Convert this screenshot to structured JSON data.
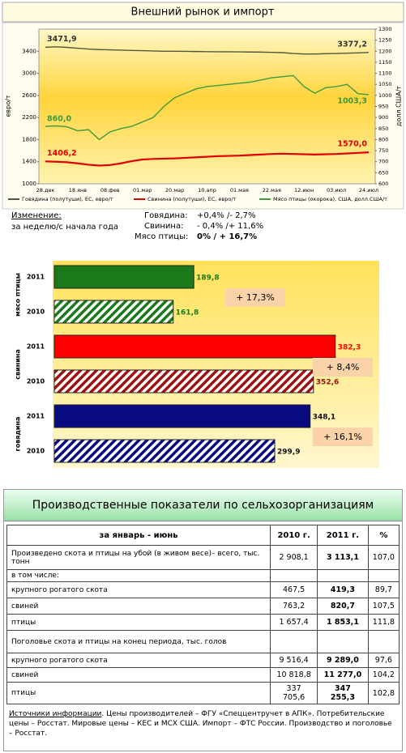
{
  "header": {
    "title": "Внешний рынок и импорт"
  },
  "chart_data": [
    {
      "type": "line",
      "ylabel": "евро/т",
      "y2label": "долл.США/т",
      "categories": [
        "28.дек",
        null,
        null,
        "18.янв",
        null,
        null,
        "08.фев",
        null,
        null,
        "01.мар",
        null,
        null,
        "20.мар",
        null,
        null,
        "10.апр",
        null,
        null,
        "01.мая",
        null,
        null,
        "22.мая",
        null,
        null,
        "12.июн",
        null,
        null,
        "03.июл",
        null,
        null,
        "24.июл"
      ],
      "ylim": [
        1000,
        3800
      ],
      "yticks": [
        1000,
        1400,
        1800,
        2200,
        2600,
        3000,
        3400
      ],
      "y2lim": [
        600,
        1300
      ],
      "y2ticks": [
        600,
        650,
        700,
        750,
        800,
        850,
        900,
        950,
        1000,
        1050,
        1100,
        1150,
        1200,
        1250,
        1300
      ],
      "series": [
        {
          "name": "Говядина (полутуши), ЕС, евро/т",
          "color": "#4f5a3a",
          "values": [
            3471.9,
            3480,
            3470,
            3455,
            3440,
            3430,
            3425,
            3420,
            3415,
            3410,
            3405,
            3400,
            3400,
            3398,
            3395,
            3392,
            3390,
            3390,
            3388,
            3386,
            3384,
            3380,
            3375,
            3360,
            3350,
            3350,
            3355,
            3360,
            3365,
            3370,
            3377.2
          ],
          "value_labels": [
            "3471,9",
            null,
            null,
            null,
            null,
            null,
            null,
            null,
            null,
            null,
            null,
            null,
            null,
            null,
            null,
            null,
            null,
            null,
            null,
            null,
            null,
            null,
            null,
            null,
            null,
            null,
            null,
            null,
            null,
            null,
            "3377,2"
          ]
        },
        {
          "name": "Свинина (полутуши), ЕС, евро/т",
          "color": "#e00000",
          "values": [
            1406.2,
            1400,
            1390,
            1370,
            1345,
            1330,
            1340,
            1370,
            1410,
            1440,
            1450,
            1455,
            1460,
            1470,
            1480,
            1490,
            1500,
            1505,
            1510,
            1520,
            1530,
            1540,
            1545,
            1540,
            1535,
            1530,
            1535,
            1540,
            1550,
            1560,
            1570.0
          ],
          "value_labels": [
            "1406,2",
            null,
            null,
            null,
            null,
            null,
            null,
            null,
            null,
            null,
            null,
            null,
            null,
            null,
            null,
            null,
            null,
            null,
            null,
            null,
            null,
            null,
            null,
            null,
            null,
            null,
            null,
            null,
            null,
            null,
            "1570,0"
          ]
        },
        {
          "name": "Мясо птицы (окорока), США, долл.США/т",
          "color": "#3c9a3c",
          "axis": "y2",
          "values": [
            860.0,
            862,
            858,
            840,
            845,
            800,
            835,
            850,
            860,
            880,
            900,
            950,
            990,
            1010,
            1030,
            1040,
            1045,
            1050,
            1055,
            1060,
            1070,
            1080,
            1085,
            1090,
            1040,
            1010,
            1035,
            1040,
            1050,
            1008,
            1003.3
          ],
          "value_labels": [
            "860,0",
            null,
            null,
            null,
            null,
            null,
            null,
            null,
            null,
            null,
            null,
            null,
            null,
            null,
            null,
            null,
            null,
            null,
            null,
            null,
            null,
            null,
            null,
            null,
            null,
            null,
            null,
            null,
            null,
            null,
            "1003,3"
          ]
        }
      ]
    },
    {
      "type": "hbar",
      "categories": [
        "мясо птицы",
        "свинина",
        "говядина"
      ],
      "series": [
        {
          "name": "2011",
          "values": [
            189.8,
            382.3,
            348.1
          ],
          "value_labels": [
            "189,8",
            "382,3",
            "348,1"
          ],
          "colors": [
            "#1a7a1a",
            "#ff0000",
            "#0a0a80"
          ]
        },
        {
          "name": "2010",
          "hatched": true,
          "values": [
            161.8,
            352.6,
            299.9
          ],
          "value_labels": [
            "161,8",
            "352,6",
            "299,9"
          ],
          "colors": [
            "#1a7a1a",
            "#a01010",
            "#0a0a80"
          ]
        }
      ],
      "changes": [
        "+ 17,3%",
        "+ 8,4%",
        "+ 16,1%"
      ]
    }
  ],
  "changes": {
    "title": "Изменение:",
    "period": "за неделю/с начала года",
    "rows": [
      [
        "Говядина:",
        "+0,4% /- 2,7%"
      ],
      [
        "Свинина:",
        "- 0,4% /+ 11,6%"
      ],
      [
        "Мясо птицы:",
        "0% / + 16,7%"
      ]
    ]
  },
  "table": {
    "title": "Производственные показатели по сельхозорганизациям",
    "header": [
      "за январь - июнь",
      "2010 г.",
      "2011 г.",
      "%"
    ],
    "rows": [
      [
        "Произведено скота и птицы на убой (в живом весе)– всего, тыс. тонн",
        "2 908,1",
        "3 113,1",
        "107,0"
      ],
      [
        "в том числе:"
      ],
      [
        "крупного рогатого скота",
        "467,5",
        "419,3",
        "89,7"
      ],
      [
        "свиней",
        "763,2",
        "820,7",
        "107,5"
      ],
      [
        "птицы",
        "1 657,4",
        "1 853,1",
        "111,8"
      ],
      [
        "Поголовье скота и птицы на конец периода, тыс. голов"
      ],
      [
        "крупного рогатого скота",
        "9 516,4",
        "9 289,0",
        "97,6"
      ],
      [
        "свиней",
        "10 818,8",
        "11 277,0",
        "104,2"
      ],
      [
        "птицы",
        "337 705,6",
        "347 255,3",
        "102,8"
      ]
    ]
  },
  "sources": {
    "label": "Источники информации",
    "text": ". Цены производителей – ФГУ «Спеццентручет в АПК». Потребительские цены – Росстат. Мировые цены – КЕС и МСХ США. Импорт – ФТС России. Производство и поголовье – Росстат."
  }
}
